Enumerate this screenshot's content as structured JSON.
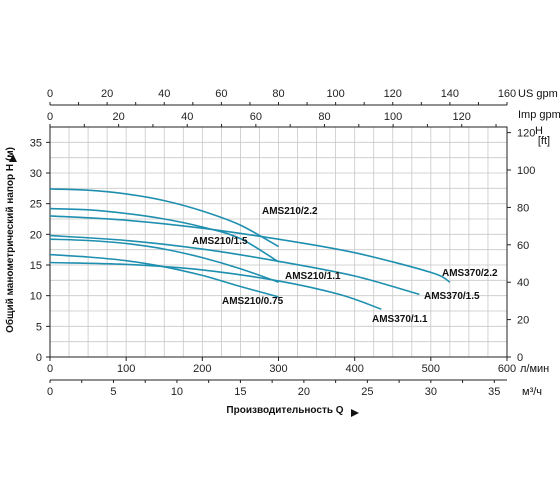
{
  "chart_data": {
    "type": "line",
    "ylabel": "Общий манометрический напор H (м)",
    "xlabel": "Производительность Q",
    "axes": {
      "us_gpm": {
        "unit": "US gpm",
        "range": [
          0,
          160
        ],
        "ticks": [
          0,
          20,
          40,
          60,
          80,
          100,
          120,
          140,
          160
        ]
      },
      "imp_gpm": {
        "unit": "Imp gpm",
        "range": [
          0,
          133.2
        ],
        "ticks": [
          0,
          20,
          40,
          60,
          80,
          100,
          120
        ]
      },
      "lpm": {
        "unit": "л/мин",
        "range": [
          0,
          600
        ],
        "ticks": [
          0,
          100,
          200,
          300,
          400,
          500,
          600
        ]
      },
      "m3h": {
        "unit": "м³/ч",
        "range": [
          0,
          36
        ],
        "ticks": [
          0,
          5,
          10,
          15,
          20,
          25,
          30,
          35
        ]
      },
      "head_m": {
        "range": [
          0,
          37.5
        ],
        "ticks": [
          0,
          5,
          10,
          15,
          20,
          25,
          30,
          35
        ]
      },
      "head_ft": {
        "unit_line1": "H",
        "unit_line2": "[ft]",
        "range": [
          0,
          123
        ],
        "ticks": [
          0,
          20,
          40,
          60,
          80,
          100,
          120
        ]
      }
    },
    "x_unit": "л/мин",
    "y_unit": "м",
    "series": [
      {
        "name": "AMS210/2.2",
        "points": [
          [
            0,
            27.4
          ],
          [
            50,
            27.2
          ],
          [
            100,
            26.6
          ],
          [
            150,
            25.5
          ],
          [
            200,
            23.8
          ],
          [
            250,
            21.5
          ],
          [
            300,
            18.0
          ]
        ]
      },
      {
        "name": "AMS210/1.5",
        "points": [
          [
            0,
            24.2
          ],
          [
            50,
            24.0
          ],
          [
            100,
            23.4
          ],
          [
            150,
            22.5
          ],
          [
            200,
            21.2
          ],
          [
            250,
            19.3
          ],
          [
            300,
            15.5
          ]
        ]
      },
      {
        "name": "AMS210/1.1",
        "points": [
          [
            0,
            19.2
          ],
          [
            50,
            19.0
          ],
          [
            100,
            18.5
          ],
          [
            150,
            17.6
          ],
          [
            200,
            16.2
          ],
          [
            250,
            14.4
          ],
          [
            300,
            12.2
          ]
        ]
      },
      {
        "name": "AMS210/0.75",
        "points": [
          [
            0,
            16.7
          ],
          [
            50,
            16.3
          ],
          [
            100,
            15.7
          ],
          [
            150,
            14.7
          ],
          [
            200,
            13.3
          ],
          [
            250,
            11.5
          ],
          [
            300,
            9.8
          ]
        ]
      },
      {
        "name": "AMS370/2.2",
        "points": [
          [
            0,
            23.0
          ],
          [
            100,
            22.3
          ],
          [
            200,
            21.0
          ],
          [
            300,
            19.2
          ],
          [
            400,
            17.0
          ],
          [
            500,
            13.8
          ],
          [
            525,
            12.2
          ]
        ]
      },
      {
        "name": "AMS370/1.5",
        "points": [
          [
            0,
            19.8
          ],
          [
            100,
            19.0
          ],
          [
            200,
            17.6
          ],
          [
            300,
            15.6
          ],
          [
            400,
            13.2
          ],
          [
            485,
            10.2
          ]
        ]
      },
      {
        "name": "AMS370/1.1",
        "points": [
          [
            0,
            15.4
          ],
          [
            100,
            15.1
          ],
          [
            200,
            14.2
          ],
          [
            300,
            12.4
          ],
          [
            380,
            10.2
          ],
          [
            435,
            7.8
          ]
        ]
      }
    ],
    "grid": true
  }
}
